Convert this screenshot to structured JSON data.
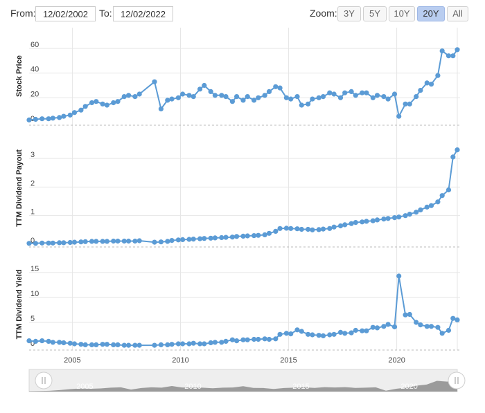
{
  "range": {
    "from_label": "From:",
    "from_value": "12/02/2002",
    "to_label": "To:",
    "to_value": "12/02/2022"
  },
  "zoom": {
    "label": "Zoom:",
    "options": [
      "3Y",
      "5Y",
      "10Y",
      "20Y",
      "All"
    ],
    "active": "20Y"
  },
  "colors": {
    "series": "#5b9bd5",
    "grid": "#e6e6e6",
    "axis": "#cccccc",
    "active_zoom": "#b9cdf0",
    "navigator_fill": "#8c8c8c"
  },
  "chart_data": {
    "type": "line",
    "x_axis": {
      "ticks": [
        "2005",
        "2010",
        "2015",
        "2020"
      ],
      "range": [
        "2002-12",
        "2022-12"
      ]
    },
    "panels": [
      {
        "ylabel": "Stock Price",
        "yticks": [
          0,
          20,
          40,
          60
        ],
        "ylim": [
          0,
          65
        ],
        "series": [
          {
            "x": [
              2002.9,
              2003.2,
              2003.5,
              2003.8,
              2004.0,
              2004.3,
              2004.5,
              2004.8,
              2005.0,
              2005.3,
              2005.5,
              2005.8,
              2006.0,
              2006.3,
              2006.5,
              2006.8,
              2007.0,
              2007.3,
              2007.5,
              2007.8,
              2008.0,
              2008.7,
              2009.0,
              2009.3,
              2009.5,
              2009.8,
              2010.0,
              2010.3,
              2010.5,
              2010.8,
              2011.0,
              2011.3,
              2011.5,
              2011.8,
              2012.0,
              2012.3,
              2012.5,
              2012.8,
              2013.0,
              2013.3,
              2013.5,
              2013.8,
              2014.0,
              2014.3,
              2014.5,
              2014.8,
              2015.0,
              2015.3,
              2015.5,
              2015.8,
              2016.0,
              2016.3,
              2016.5,
              2016.8,
              2017.0,
              2017.3,
              2017.5,
              2017.8,
              2018.0,
              2018.3,
              2018.5,
              2018.8,
              2019.0,
              2019.3,
              2019.5,
              2019.8,
              2020.0,
              2020.3,
              2020.5,
              2020.8,
              2021.0,
              2021.3,
              2021.5,
              2021.8,
              2022.0,
              2022.3,
              2022.5,
              2022.7
            ],
            "values": [
              2,
              2.5,
              3,
              3,
              3.5,
              4,
              5,
              6,
              8,
              10,
              13,
              16,
              17,
              15,
              14,
              16,
              17,
              21,
              22,
              21,
              23,
              33,
              11,
              18,
              19,
              20,
              23,
              22,
              21,
              27,
              30,
              25,
              22,
              22,
              21,
              17,
              21,
              18,
              21,
              18,
              20,
              22,
              25,
              29,
              28,
              20,
              19,
              21,
              14,
              15,
              19,
              20,
              21,
              24,
              23,
              20,
              24,
              25,
              22,
              24,
              24,
              20,
              22,
              21,
              19,
              23,
              5,
              15,
              15,
              21,
              26,
              32,
              31,
              38,
              58,
              54,
              54,
              59
            ]
          }
        ]
      },
      {
        "ylabel": "TTM Dividend Payout",
        "yticks": [
          0,
          1,
          2,
          3
        ],
        "ylim": [
          0,
          3.5
        ],
        "series": [
          {
            "x": [
              2002.9,
              2003.2,
              2003.5,
              2003.8,
              2004.0,
              2004.3,
              2004.5,
              2004.8,
              2005.0,
              2005.3,
              2005.5,
              2005.8,
              2006.0,
              2006.3,
              2006.5,
              2006.8,
              2007.0,
              2007.3,
              2007.5,
              2007.8,
              2008.0,
              2008.7,
              2009.0,
              2009.3,
              2009.5,
              2009.8,
              2010.0,
              2010.3,
              2010.5,
              2010.8,
              2011.0,
              2011.3,
              2011.5,
              2011.8,
              2012.0,
              2012.3,
              2012.5,
              2012.8,
              2013.0,
              2013.3,
              2013.5,
              2013.8,
              2014.0,
              2014.3,
              2014.5,
              2014.8,
              2015.0,
              2015.3,
              2015.5,
              2015.8,
              2016.0,
              2016.3,
              2016.5,
              2016.8,
              2017.0,
              2017.3,
              2017.5,
              2017.8,
              2018.0,
              2018.3,
              2018.5,
              2018.8,
              2019.0,
              2019.3,
              2019.5,
              2019.8,
              2020.0,
              2020.3,
              2020.5,
              2020.8,
              2021.0,
              2021.3,
              2021.5,
              2021.8,
              2022.0,
              2022.3,
              2022.5,
              2022.7
            ],
            "values": [
              0.03,
              0.03,
              0.04,
              0.04,
              0.04,
              0.05,
              0.05,
              0.06,
              0.07,
              0.08,
              0.09,
              0.1,
              0.1,
              0.1,
              0.1,
              0.11,
              0.11,
              0.11,
              0.11,
              0.11,
              0.12,
              0.07,
              0.08,
              0.1,
              0.13,
              0.15,
              0.16,
              0.17,
              0.18,
              0.19,
              0.2,
              0.21,
              0.22,
              0.23,
              0.24,
              0.25,
              0.27,
              0.28,
              0.29,
              0.3,
              0.31,
              0.33,
              0.38,
              0.45,
              0.55,
              0.56,
              0.55,
              0.54,
              0.52,
              0.52,
              0.5,
              0.51,
              0.53,
              0.55,
              0.6,
              0.64,
              0.68,
              0.72,
              0.76,
              0.78,
              0.8,
              0.82,
              0.85,
              0.88,
              0.9,
              0.93,
              0.95,
              1.0,
              1.05,
              1.12,
              1.2,
              1.3,
              1.35,
              1.48,
              1.7,
              1.9,
              3.05,
              3.3
            ]
          }
        ]
      },
      {
        "ylabel": "TTM Dividend Yield",
        "yticks": [
          0,
          5,
          10,
          15
        ],
        "ylim": [
          0,
          17
        ],
        "series": [
          {
            "x": [
              2002.9,
              2003.2,
              2003.5,
              2003.8,
              2004.0,
              2004.3,
              2004.5,
              2004.8,
              2005.0,
              2005.3,
              2005.5,
              2005.8,
              2006.0,
              2006.3,
              2006.5,
              2006.8,
              2007.0,
              2007.3,
              2007.5,
              2007.8,
              2008.0,
              2008.7,
              2009.0,
              2009.3,
              2009.5,
              2009.8,
              2010.0,
              2010.3,
              2010.5,
              2010.8,
              2011.0,
              2011.3,
              2011.5,
              2011.8,
              2012.0,
              2012.3,
              2012.5,
              2012.8,
              2013.0,
              2013.3,
              2013.5,
              2013.8,
              2014.0,
              2014.3,
              2014.5,
              2014.8,
              2015.0,
              2015.3,
              2015.5,
              2015.8,
              2016.0,
              2016.3,
              2016.5,
              2016.8,
              2017.0,
              2017.3,
              2017.5,
              2017.8,
              2018.0,
              2018.3,
              2018.5,
              2018.8,
              2019.0,
              2019.3,
              2019.5,
              2019.8,
              2020.0,
              2020.3,
              2020.5,
              2020.8,
              2021.0,
              2021.3,
              2021.5,
              2021.8,
              2022.0,
              2022.3,
              2022.5,
              2022.7
            ],
            "values": [
              1.3,
              1.2,
              1.3,
              1.2,
              1.0,
              1.0,
              0.9,
              0.8,
              0.7,
              0.6,
              0.5,
              0.5,
              0.5,
              0.6,
              0.6,
              0.5,
              0.5,
              0.4,
              0.4,
              0.4,
              0.4,
              0.4,
              0.5,
              0.5,
              0.6,
              0.7,
              0.7,
              0.7,
              0.8,
              0.7,
              0.7,
              0.9,
              1.0,
              1.0,
              1.2,
              1.5,
              1.3,
              1.5,
              1.5,
              1.6,
              1.6,
              1.7,
              1.6,
              1.7,
              2.6,
              2.8,
              2.7,
              3.5,
              3.2,
              2.6,
              2.5,
              2.4,
              2.3,
              2.5,
              2.6,
              3.0,
              2.8,
              2.9,
              3.4,
              3.3,
              3.3,
              4.0,
              3.9,
              4.2,
              4.6,
              4.1,
              14.3,
              6.5,
              6.6,
              5.0,
              4.5,
              4.2,
              4.2,
              4.0,
              2.8,
              3.4,
              5.8,
              5.5
            ]
          }
        ]
      }
    ],
    "navigator": {
      "ticks": [
        "2005",
        "2010",
        "2015",
        "2020"
      ],
      "values": [
        2,
        3,
        4,
        8,
        13,
        17,
        15,
        17,
        21,
        23,
        11,
        19,
        23,
        21,
        30,
        22,
        21,
        21,
        18,
        21,
        22,
        29,
        20,
        19,
        14,
        19,
        21,
        23,
        20,
        24,
        22,
        24,
        20,
        21,
        23,
        5,
        15,
        21,
        32,
        38,
        58,
        54,
        59
      ]
    }
  }
}
